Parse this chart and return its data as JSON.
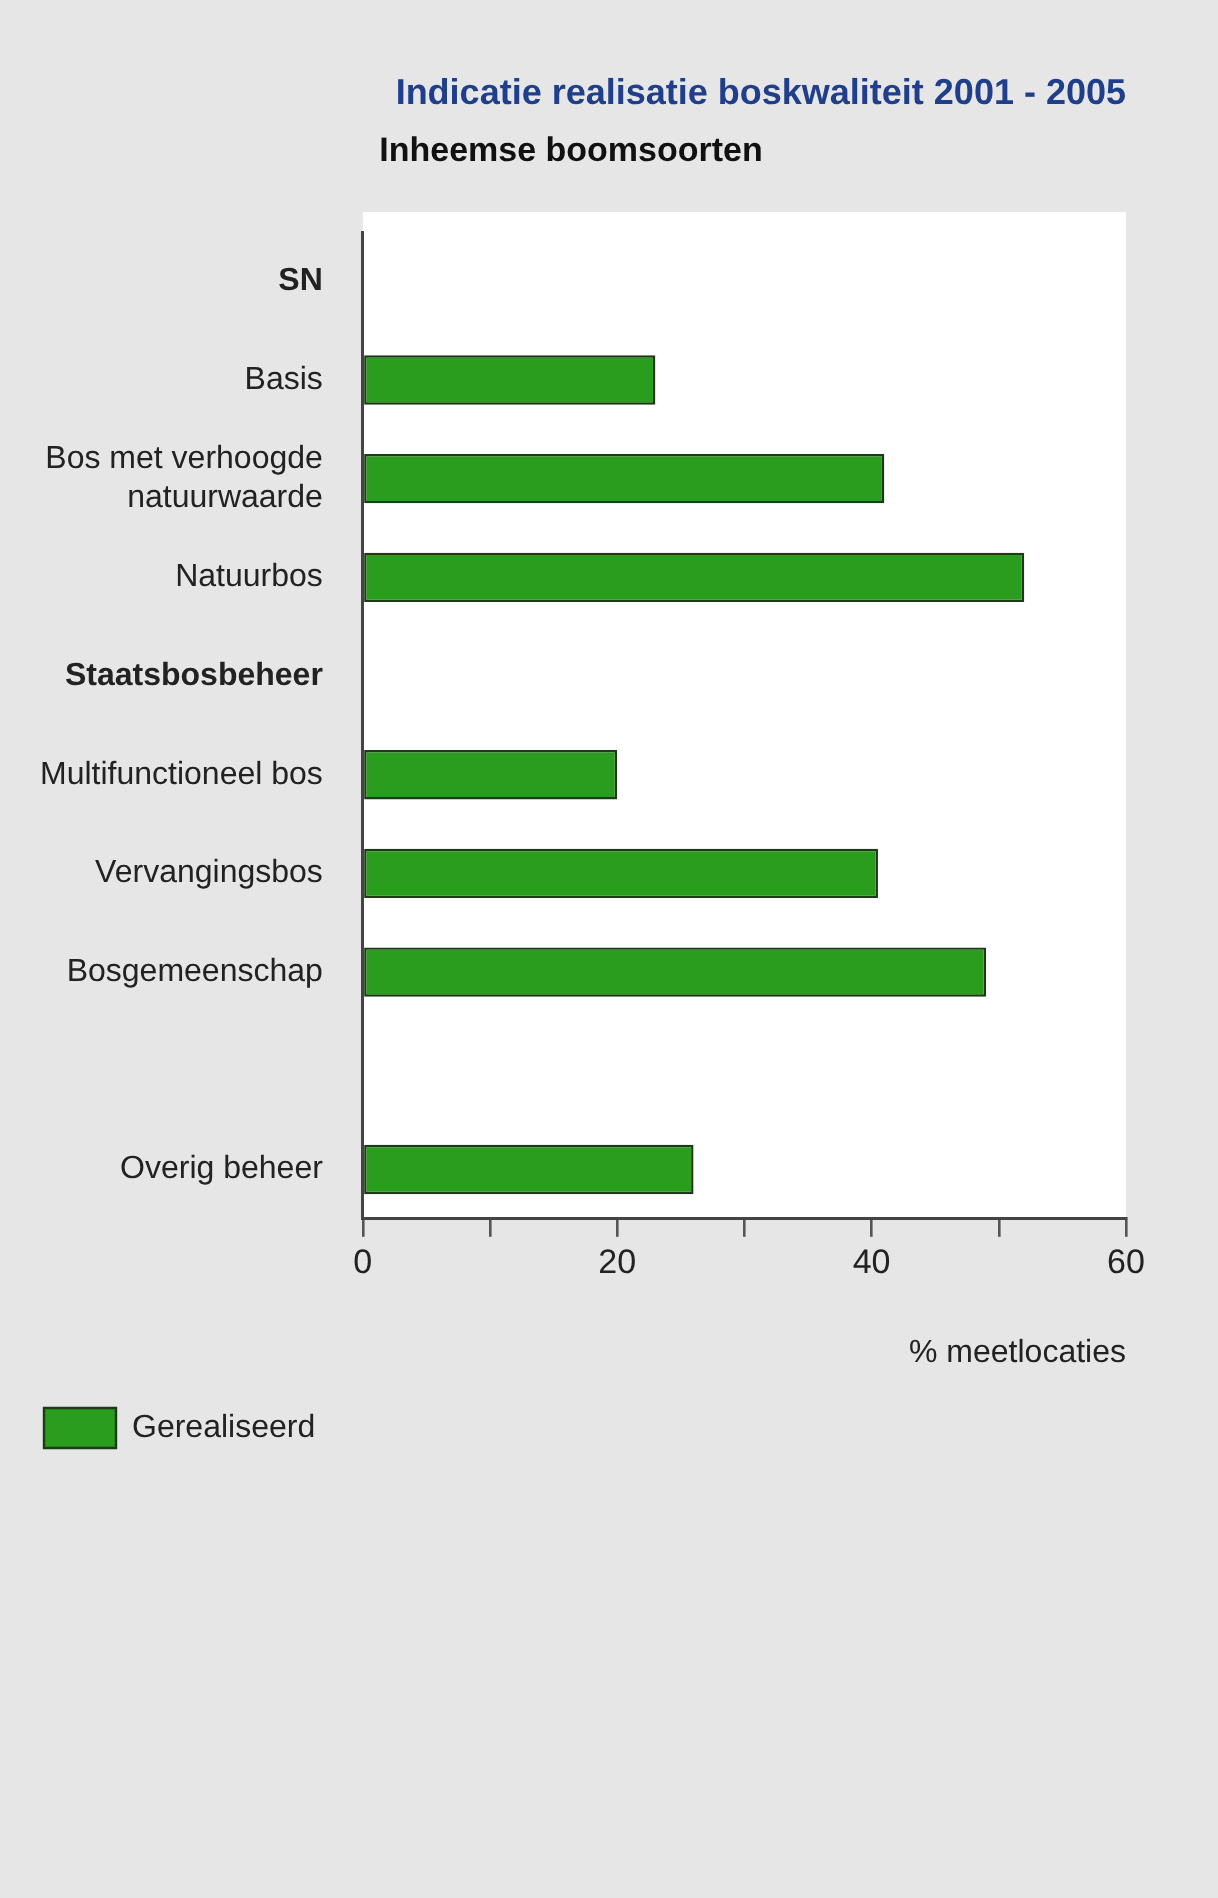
{
  "chart_data": {
    "type": "bar",
    "orientation": "horizontal",
    "title": "Indicatie realisatie boskwaliteit 2001 - 2005",
    "subtitle": "Inheemse boomsoorten",
    "xlabel": "% meetlocaties",
    "categories": [
      "SN",
      "Basis",
      "Bos met verhoogde natuurwaarde",
      "Natuurbos",
      "Staatsbosbeheer",
      "Multifunctioneel bos",
      "Vervangingsbos",
      "Bosgemeenschap",
      null,
      "Overig beheer"
    ],
    "series": [
      {
        "name": "Gerealiseerd",
        "color": "#2a9d1f",
        "values": [
          null,
          23,
          41,
          52,
          null,
          20,
          40.5,
          49,
          null,
          26
        ]
      }
    ],
    "xlim": [
      0,
      60
    ],
    "xticks": [
      0,
      {
        "value": 10,
        "label": null
      },
      20,
      {
        "value": 30,
        "label": null
      },
      40,
      {
        "value": 50,
        "label": null
      },
      60
    ],
    "grid": false,
    "legend": "bottom left"
  }
}
